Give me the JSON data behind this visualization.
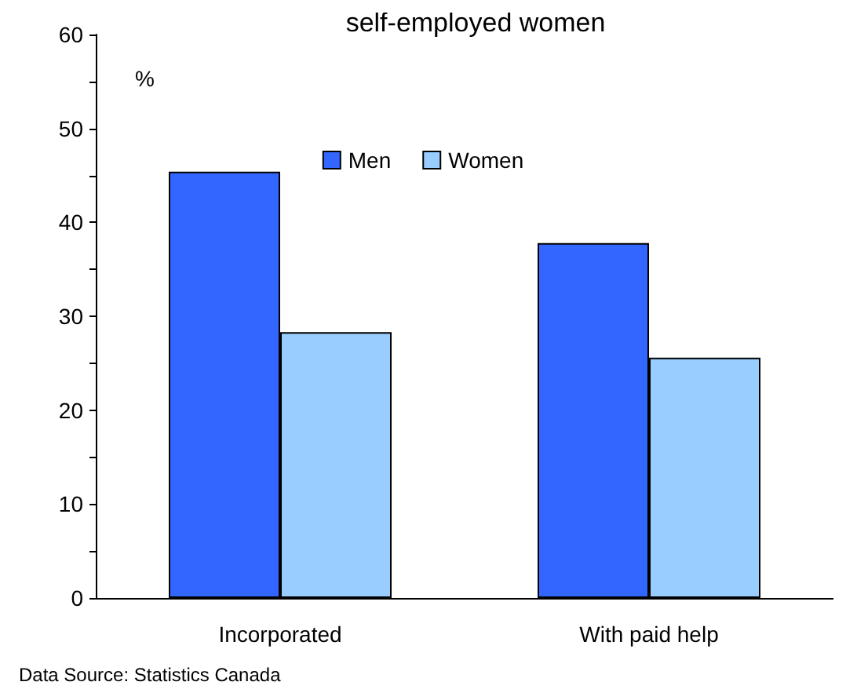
{
  "chart_data": {
    "type": "bar",
    "title": "self-employed women",
    "ylabel": "%",
    "categories": [
      "Incorporated",
      "With paid help"
    ],
    "series": [
      {
        "name": "Men",
        "color": "#3366ff",
        "values": [
          45.4,
          37.8
        ]
      },
      {
        "name": "Women",
        "color": "#99ccff",
        "values": [
          28.3,
          25.6
        ]
      }
    ],
    "ylim": [
      0,
      60
    ],
    "yticks": [
      0,
      {
        "value": 5,
        "label": null
      },
      10,
      {
        "value": 15,
        "label": null
      },
      20,
      {
        "value": 25,
        "label": null
      },
      30,
      {
        "value": 35,
        "label": null
      },
      40,
      {
        "value": 45,
        "label": null
      },
      50,
      {
        "value": 55,
        "label": null
      },
      60
    ],
    "legend": "top",
    "grid": false,
    "annotations": [
      "Data Source: Statistics Canada"
    ]
  }
}
